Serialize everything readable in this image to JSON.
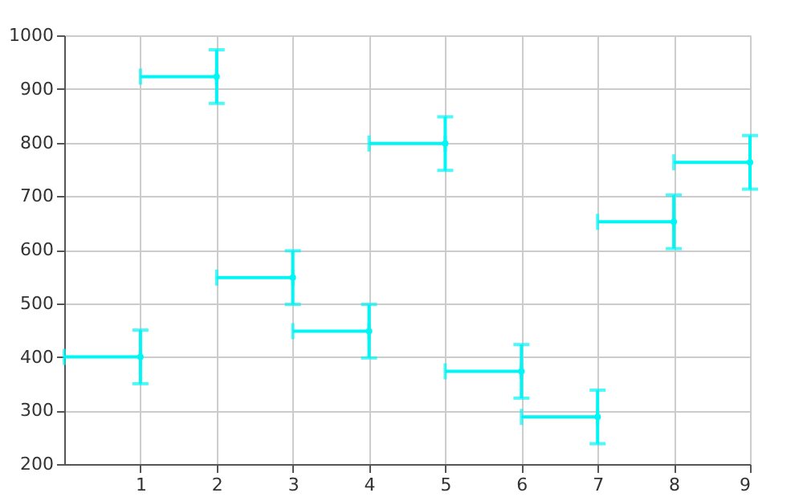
{
  "chart_data": {
    "type": "scatter",
    "x": [
      1,
      2,
      3,
      4,
      5,
      6,
      7,
      8,
      9
    ],
    "series": [
      {
        "color": "#00f5f5",
        "values": [
          400,
          923,
          548,
          448,
          798,
          373,
          288,
          652,
          763
        ],
        "errors": [
          50,
          50,
          50,
          50,
          50,
          50,
          50,
          50,
          50
        ],
        "xerrors": [
          [
            0,
            1
          ],
          [
            1,
            2
          ],
          [
            2,
            3
          ],
          [
            3,
            4
          ],
          [
            4,
            5
          ],
          [
            5,
            6
          ],
          [
            6,
            7
          ],
          [
            7,
            8
          ],
          [
            8,
            9
          ]
        ]
      }
    ],
    "grid": true,
    "legend": false,
    "xlim": [
      0,
      9
    ],
    "xticks": [
      1,
      2,
      3,
      4,
      5,
      6,
      7,
      8,
      9
    ],
    "ylim": [
      200,
      1000
    ],
    "yticks": [
      200,
      300,
      400,
      500,
      600,
      700,
      800,
      900,
      1000
    ]
  }
}
